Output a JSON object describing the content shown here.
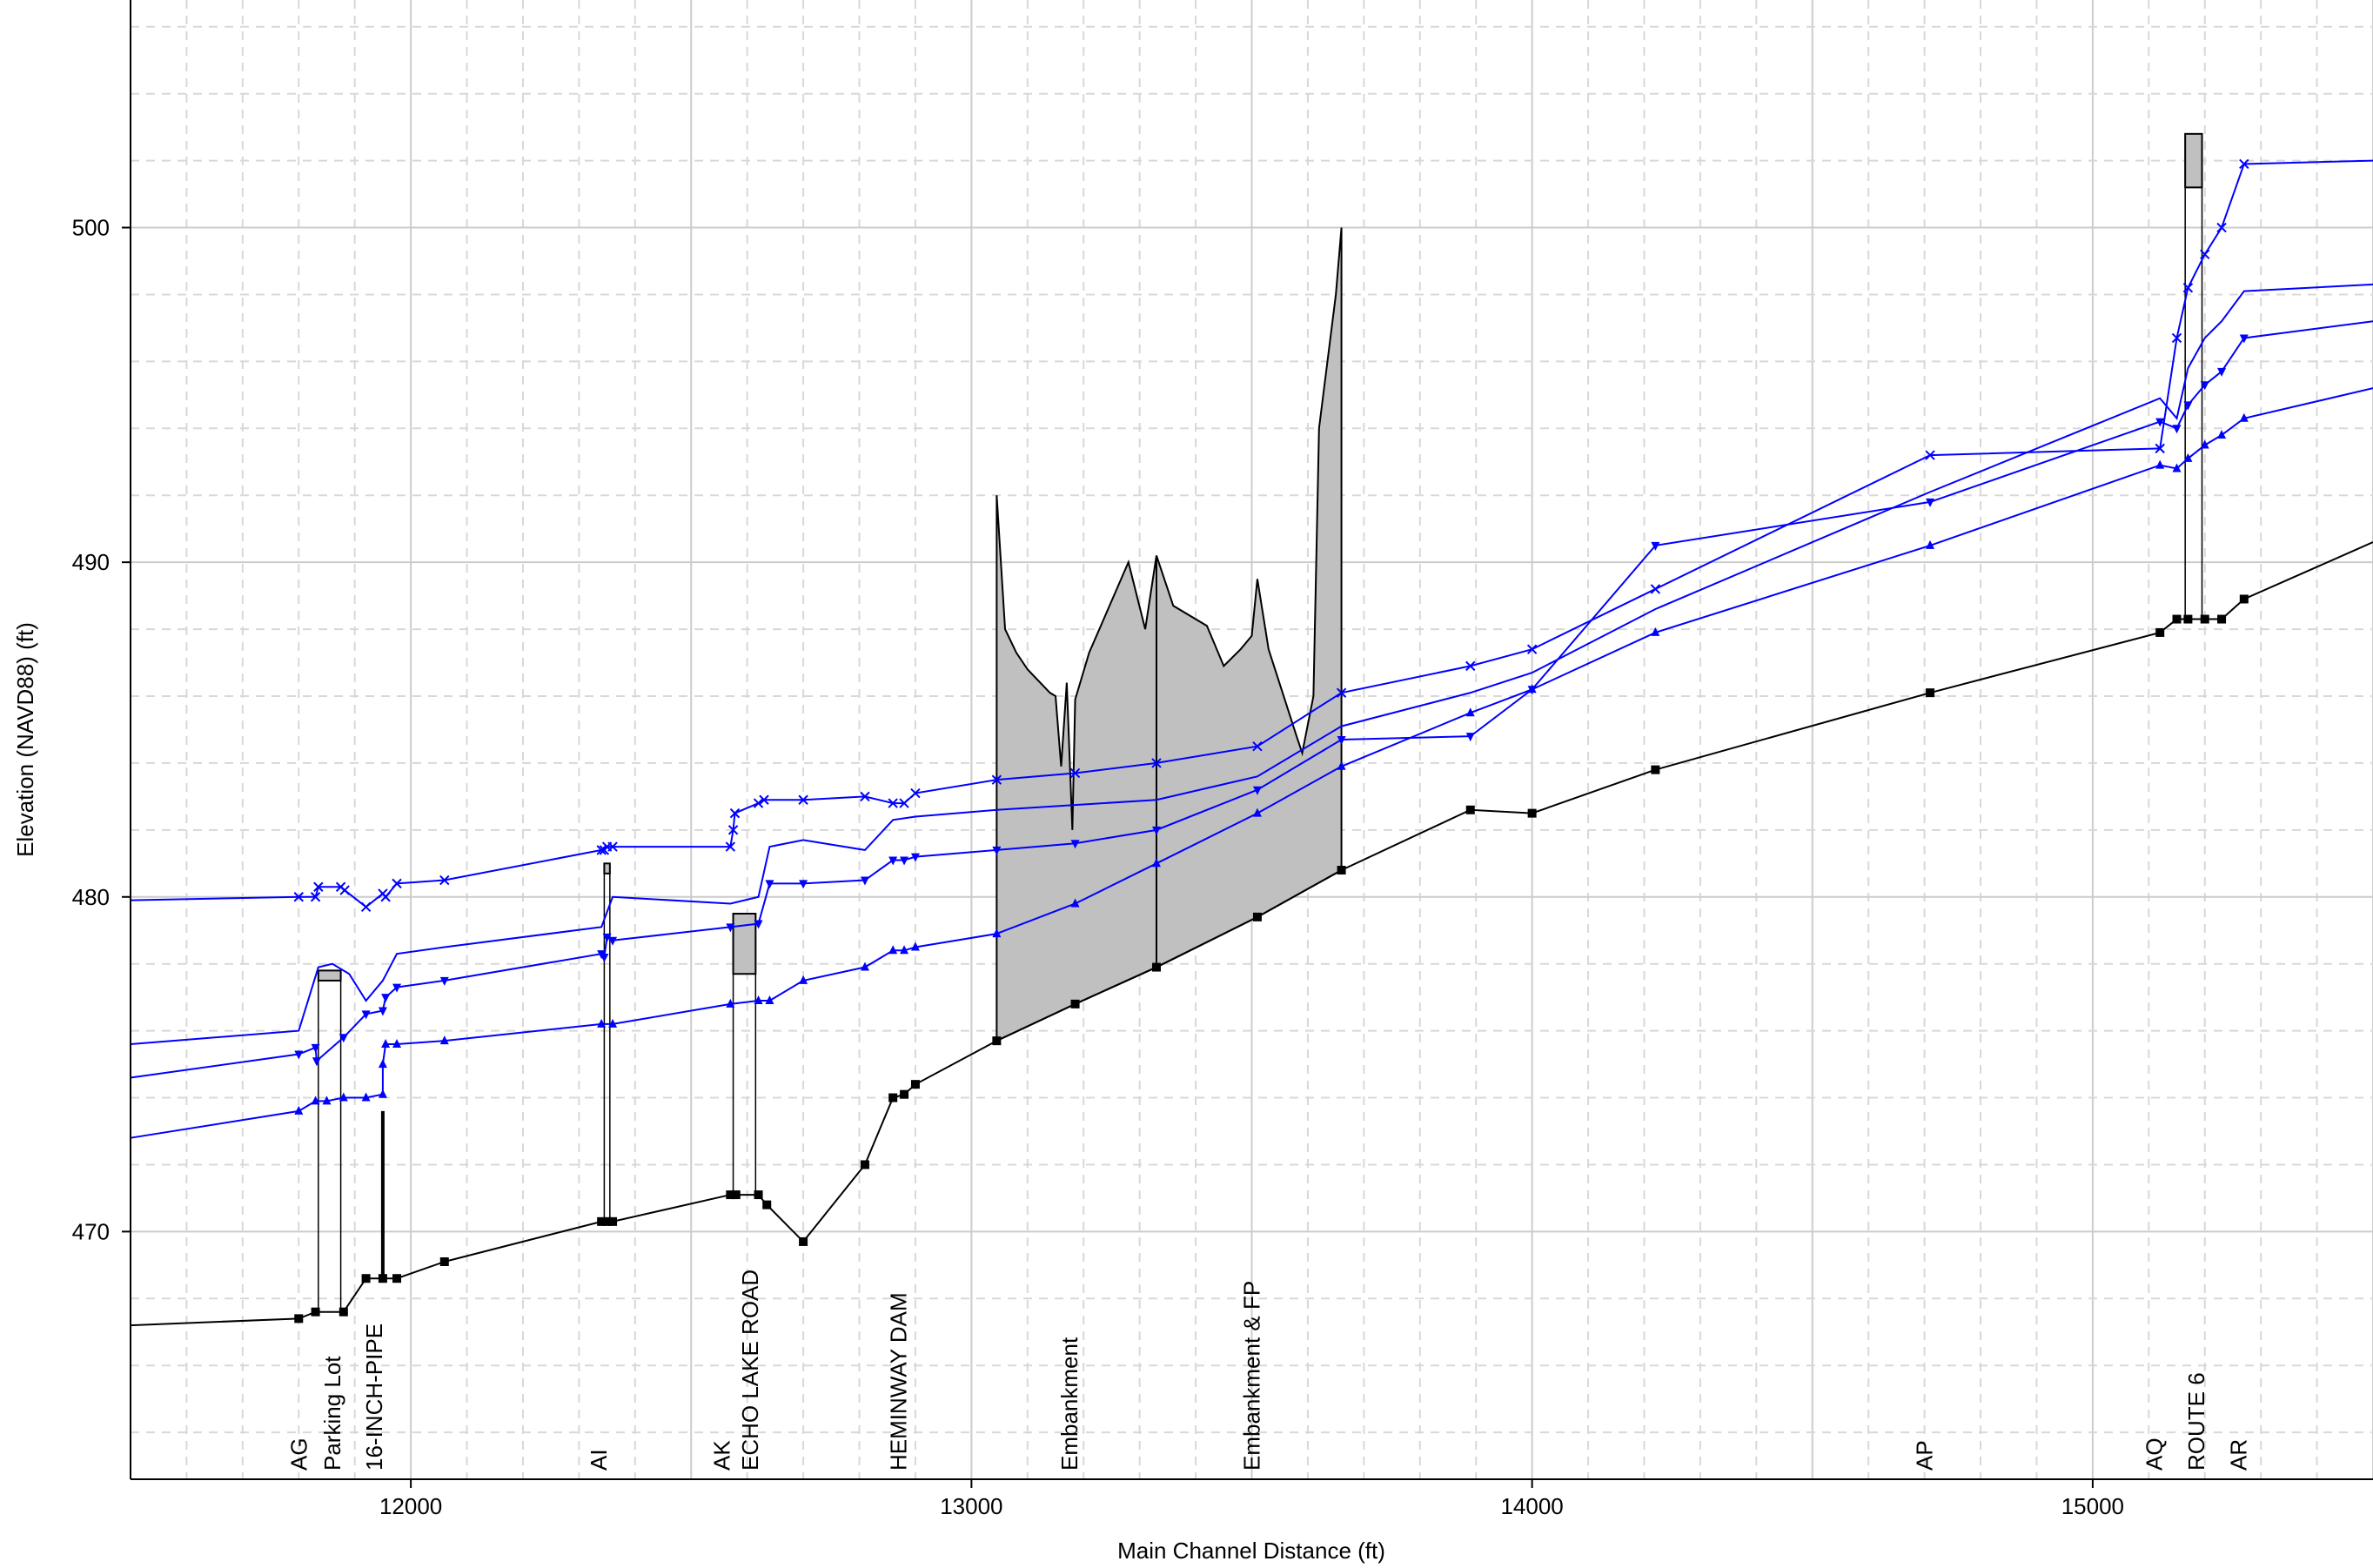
{
  "chart_data": {
    "type": "line",
    "title": "",
    "xlabel": "Main Channel Distance (ft)",
    "ylabel": "Elevation (NAVD88) (ft)",
    "xlim": [
      11500,
      15500
    ],
    "ylim": [
      462.6,
      506.8
    ],
    "xticks": [
      12000,
      13000,
      14000,
      15000
    ],
    "yticks": [
      470,
      480,
      490,
      500
    ],
    "grid": true,
    "colors": {
      "bed": "#000000",
      "water": "#0000ff",
      "structure_fill": "#c0c0c0",
      "grid_major": "#cccccc",
      "grid_minor": "#d8d8d8"
    },
    "station_labels": [
      {
        "x": 11800,
        "label": "AG"
      },
      {
        "x": 11860,
        "label": "Parking Lot"
      },
      {
        "x": 11935,
        "label": "16-INCH-PIPE"
      },
      {
        "x": 12335,
        "label": "AI"
      },
      {
        "x": 12555,
        "label": "AK"
      },
      {
        "x": 12605,
        "label": "ECHO LAKE ROAD"
      },
      {
        "x": 12870,
        "label": "HEMINWAY DAM"
      },
      {
        "x": 13175,
        "label": "Embankment"
      },
      {
        "x": 13500,
        "label": "Embankment & FP"
      },
      {
        "x": 14700,
        "label": "AP"
      },
      {
        "x": 15110,
        "label": "AQ"
      },
      {
        "x": 15185,
        "label": "ROUTE 6"
      },
      {
        "x": 15260,
        "label": "AR"
      }
    ],
    "series": [
      {
        "role": "bed",
        "marker": "square",
        "points": [
          [
            11500,
            467.2
          ],
          [
            11800,
            467.4
          ],
          [
            11830,
            467.6
          ],
          [
            11880,
            467.6
          ],
          [
            11920,
            468.6
          ],
          [
            11950,
            468.6
          ],
          [
            11975,
            468.6
          ],
          [
            12060,
            469.1
          ],
          [
            12340,
            470.3
          ],
          [
            12350,
            470.3
          ],
          [
            12360,
            470.3
          ],
          [
            12570,
            471.1
          ],
          [
            12580,
            471.1
          ],
          [
            12620,
            471.1
          ],
          [
            12635,
            470.8
          ],
          [
            12700,
            469.7
          ],
          [
            12810,
            472.0
          ],
          [
            12860,
            474.0
          ],
          [
            12880,
            474.1
          ],
          [
            12900,
            474.4
          ],
          [
            13045,
            475.7
          ],
          [
            13185,
            476.8
          ],
          [
            13330,
            477.9
          ],
          [
            13510,
            479.4
          ],
          [
            13660,
            480.8
          ],
          [
            13890,
            482.6
          ],
          [
            14000,
            482.5
          ],
          [
            14220,
            483.8
          ],
          [
            14710,
            486.1
          ],
          [
            15120,
            487.9
          ],
          [
            15150,
            488.3
          ],
          [
            15170,
            488.3
          ],
          [
            15200,
            488.3
          ],
          [
            15230,
            488.3
          ],
          [
            15270,
            488.9
          ],
          [
            15500,
            490.6
          ]
        ]
      },
      {
        "role": "water",
        "marker": "triangle-up",
        "points": [
          [
            11500,
            472.8
          ],
          [
            11800,
            473.6
          ],
          [
            11830,
            473.9
          ],
          [
            11850,
            473.9
          ],
          [
            11880,
            474.0
          ],
          [
            11920,
            474.0
          ],
          [
            11950,
            474.1
          ],
          [
            11950,
            475.0
          ],
          [
            11955,
            475.6
          ],
          [
            11975,
            475.6
          ],
          [
            12060,
            475.7
          ],
          [
            12340,
            476.2
          ],
          [
            12360,
            476.2
          ],
          [
            12570,
            476.8
          ],
          [
            12620,
            476.9
          ],
          [
            12640,
            476.9
          ],
          [
            12700,
            477.5
          ],
          [
            12810,
            477.9
          ],
          [
            12860,
            478.4
          ],
          [
            12880,
            478.4
          ],
          [
            12900,
            478.5
          ],
          [
            13045,
            478.9
          ],
          [
            13185,
            479.8
          ],
          [
            13330,
            481.0
          ],
          [
            13510,
            482.5
          ],
          [
            13660,
            483.9
          ],
          [
            13890,
            485.5
          ],
          [
            14000,
            486.2
          ],
          [
            14220,
            487.9
          ],
          [
            14710,
            490.5
          ],
          [
            15120,
            492.9
          ],
          [
            15150,
            492.8
          ],
          [
            15170,
            493.1
          ],
          [
            15200,
            493.5
          ],
          [
            15230,
            493.8
          ],
          [
            15270,
            494.3
          ],
          [
            15500,
            495.2
          ]
        ]
      },
      {
        "role": "water",
        "marker": "triangle-down",
        "points": [
          [
            11500,
            474.6
          ],
          [
            11800,
            475.3
          ],
          [
            11830,
            475.5
          ],
          [
            11832,
            475.1
          ],
          [
            11880,
            475.8
          ],
          [
            11920,
            476.5
          ],
          [
            11950,
            476.6
          ],
          [
            11955,
            477.0
          ],
          [
            11975,
            477.3
          ],
          [
            12060,
            477.5
          ],
          [
            12340,
            478.3
          ],
          [
            12345,
            478.2
          ],
          [
            12350,
            478.8
          ],
          [
            12360,
            478.7
          ],
          [
            12570,
            479.1
          ],
          [
            12620,
            479.2
          ],
          [
            12640,
            480.4
          ],
          [
            12700,
            480.4
          ],
          [
            12810,
            480.5
          ],
          [
            12860,
            481.1
          ],
          [
            12880,
            481.1
          ],
          [
            12900,
            481.2
          ],
          [
            13045,
            481.4
          ],
          [
            13185,
            481.6
          ],
          [
            13330,
            482.0
          ],
          [
            13510,
            483.2
          ],
          [
            13660,
            484.7
          ],
          [
            13890,
            484.8
          ],
          [
            14000,
            486.2
          ],
          [
            14220,
            490.5
          ],
          [
            14710,
            491.8
          ],
          [
            15120,
            494.2
          ],
          [
            15150,
            494.0
          ],
          [
            15170,
            494.7
          ],
          [
            15200,
            495.3
          ],
          [
            15230,
            495.7
          ],
          [
            15270,
            496.7
          ],
          [
            15500,
            497.2
          ]
        ]
      },
      {
        "role": "water",
        "marker": "none",
        "points": [
          [
            11500,
            475.6
          ],
          [
            11800,
            476.0
          ],
          [
            11835,
            477.9
          ],
          [
            11860,
            478.0
          ],
          [
            11890,
            477.7
          ],
          [
            11920,
            476.9
          ],
          [
            11950,
            477.5
          ],
          [
            11975,
            478.3
          ],
          [
            12060,
            478.5
          ],
          [
            12340,
            479.1
          ],
          [
            12360,
            480.0
          ],
          [
            12570,
            479.8
          ],
          [
            12620,
            480.0
          ],
          [
            12640,
            481.5
          ],
          [
            12700,
            481.7
          ],
          [
            12810,
            481.4
          ],
          [
            12860,
            482.3
          ],
          [
            12900,
            482.4
          ],
          [
            13045,
            482.6
          ],
          [
            13330,
            482.9
          ],
          [
            13510,
            483.6
          ],
          [
            13660,
            485.1
          ],
          [
            13890,
            486.1
          ],
          [
            14000,
            486.7
          ],
          [
            14220,
            488.6
          ],
          [
            14710,
            492.1
          ],
          [
            15120,
            494.9
          ],
          [
            15150,
            494.3
          ],
          [
            15170,
            495.8
          ],
          [
            15200,
            496.7
          ],
          [
            15230,
            497.2
          ],
          [
            15270,
            498.1
          ],
          [
            15500,
            498.3
          ]
        ]
      },
      {
        "role": "water",
        "marker": "x",
        "points": [
          [
            11500,
            479.9
          ],
          [
            11800,
            480.0
          ],
          [
            11830,
            480.0
          ],
          [
            11835,
            480.3
          ],
          [
            11875,
            480.3
          ],
          [
            11882,
            480.2
          ],
          [
            11920,
            479.7
          ],
          [
            11950,
            480.1
          ],
          [
            11955,
            480.0
          ],
          [
            11975,
            480.4
          ],
          [
            12060,
            480.5
          ],
          [
            12340,
            481.4
          ],
          [
            12345,
            481.4
          ],
          [
            12350,
            481.5
          ],
          [
            12360,
            481.5
          ],
          [
            12570,
            481.5
          ],
          [
            12575,
            482.0
          ],
          [
            12578,
            482.5
          ],
          [
            12620,
            482.8
          ],
          [
            12630,
            482.9
          ],
          [
            12700,
            482.9
          ],
          [
            12810,
            483.0
          ],
          [
            12860,
            482.8
          ],
          [
            12880,
            482.8
          ],
          [
            12900,
            483.1
          ],
          [
            13045,
            483.5
          ],
          [
            13185,
            483.7
          ],
          [
            13330,
            484.0
          ],
          [
            13510,
            484.5
          ],
          [
            13660,
            486.1
          ],
          [
            13890,
            486.9
          ],
          [
            14000,
            487.4
          ],
          [
            14220,
            489.2
          ],
          [
            14710,
            493.2
          ],
          [
            15120,
            493.4
          ],
          [
            15150,
            496.7
          ],
          [
            15170,
            498.2
          ],
          [
            15200,
            499.2
          ],
          [
            15230,
            500.0
          ],
          [
            15270,
            501.9
          ],
          [
            15500,
            502.0
          ]
        ]
      }
    ],
    "structures": [
      {
        "type": "bridge-deck",
        "x1": 11835,
        "x2": 11875,
        "top": 477.8,
        "bottom": 477.5
      },
      {
        "type": "pipe",
        "x": 11950,
        "top": 473.6,
        "bottom": 468.6
      },
      {
        "type": "culvert",
        "x1": 12345,
        "x2": 12355,
        "top": 481.0,
        "bottom": 480.7
      },
      {
        "type": "bridge-deck",
        "x1": 12575,
        "x2": 12615,
        "top": 479.5,
        "bottom": 477.7
      },
      {
        "type": "bridge-deck",
        "x1": 15165,
        "x2": 15195,
        "top": 502.8,
        "bottom": 501.2
      }
    ],
    "embankment": [
      [
        13045,
        475.7
      ],
      [
        13045,
        492.0
      ],
      [
        13060,
        488.0
      ],
      [
        13080,
        487.3
      ],
      [
        13100,
        486.8
      ],
      [
        13140,
        486.1
      ],
      [
        13150,
        486.0
      ],
      [
        13160,
        483.9
      ],
      [
        13170,
        486.4
      ],
      [
        13180,
        482.0
      ],
      [
        13185,
        485.9
      ],
      [
        13210,
        487.3
      ],
      [
        13280,
        490.0
      ],
      [
        13310,
        488.0
      ],
      [
        13330,
        490.2
      ],
      [
        13360,
        488.7
      ],
      [
        13420,
        488.1
      ],
      [
        13450,
        486.9
      ],
      [
        13480,
        487.4
      ],
      [
        13500,
        487.8
      ],
      [
        13510,
        489.5
      ],
      [
        13530,
        487.4
      ],
      [
        13580,
        484.8
      ],
      [
        13590,
        484.3
      ],
      [
        13610,
        486.0
      ],
      [
        13620,
        494.0
      ],
      [
        13650,
        498.0
      ],
      [
        13660,
        500.0
      ],
      [
        13660,
        480.8
      ],
      [
        13510,
        479.4
      ],
      [
        13330,
        477.9
      ],
      [
        13185,
        476.8
      ],
      [
        13045,
        475.7
      ]
    ],
    "embankment_divider": {
      "x": 13330,
      "top": 490.2,
      "bottom": 477.9
    }
  }
}
